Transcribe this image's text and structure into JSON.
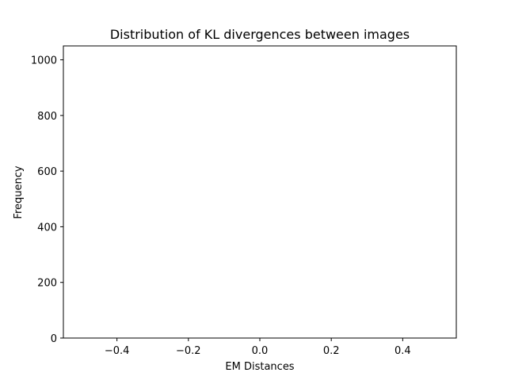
{
  "chart_data": {
    "type": "bar",
    "title": "Distribution of KL divergences between images",
    "xlabel": "EM Distances",
    "ylabel": "Frequency",
    "xlim": [
      -0.55,
      0.55
    ],
    "ylim": [
      0,
      1050
    ],
    "x_ticks": [
      -0.4,
      -0.2,
      0.0,
      0.2,
      0.4
    ],
    "x_tick_labels": [
      "−0.4",
      "−0.2",
      "0.0",
      "0.2",
      "0.4"
    ],
    "y_ticks": [
      0,
      200,
      400,
      600,
      800,
      1000
    ],
    "y_tick_labels": [
      "0",
      "200",
      "400",
      "600",
      "800",
      "1000"
    ],
    "grid": false,
    "series": [],
    "colors": {
      "axes": "#000000",
      "background": "#ffffff"
    }
  }
}
